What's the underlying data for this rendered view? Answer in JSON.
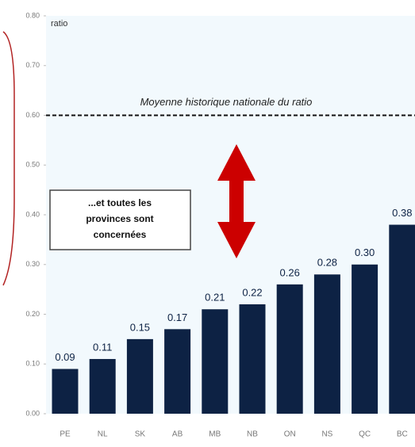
{
  "chart_data": {
    "type": "bar",
    "y_axis_label": "ratio",
    "categories": [
      "PE",
      "NL",
      "SK",
      "AB",
      "MB",
      "NB",
      "ON",
      "NS",
      "QC",
      "BC"
    ],
    "values": [
      0.09,
      0.11,
      0.15,
      0.17,
      0.21,
      0.22,
      0.26,
      0.28,
      0.3,
      0.38
    ],
    "value_labels": [
      "0.09",
      "0.11",
      "0.15",
      "0.17",
      "0.21",
      "0.22",
      "0.26",
      "0.28",
      "0.30",
      "0.38"
    ],
    "color": "#0d2244",
    "ylim": [
      0,
      0.8
    ],
    "yticks": [
      {
        "value": 0,
        "label": "0.00"
      },
      {
        "value": 0.1,
        "label": "0.10"
      },
      {
        "value": 0.2,
        "label": "0.20"
      },
      {
        "value": 0.3,
        "label": "0.30"
      },
      {
        "value": 0.4,
        "label": "0.40"
      },
      {
        "value": 0.5,
        "label": "0.50"
      },
      {
        "value": 0.6,
        "label": "0.60"
      },
      {
        "value": 0.7,
        "label": "0.70"
      },
      {
        "value": 0.8,
        "label": "0.80"
      }
    ],
    "reference_line": {
      "value": 0.6,
      "label": "Moyenne historique nationale du ratio"
    },
    "annotation_lines": [
      "...et toutes les",
      "provinces sont",
      "concernées"
    ]
  }
}
